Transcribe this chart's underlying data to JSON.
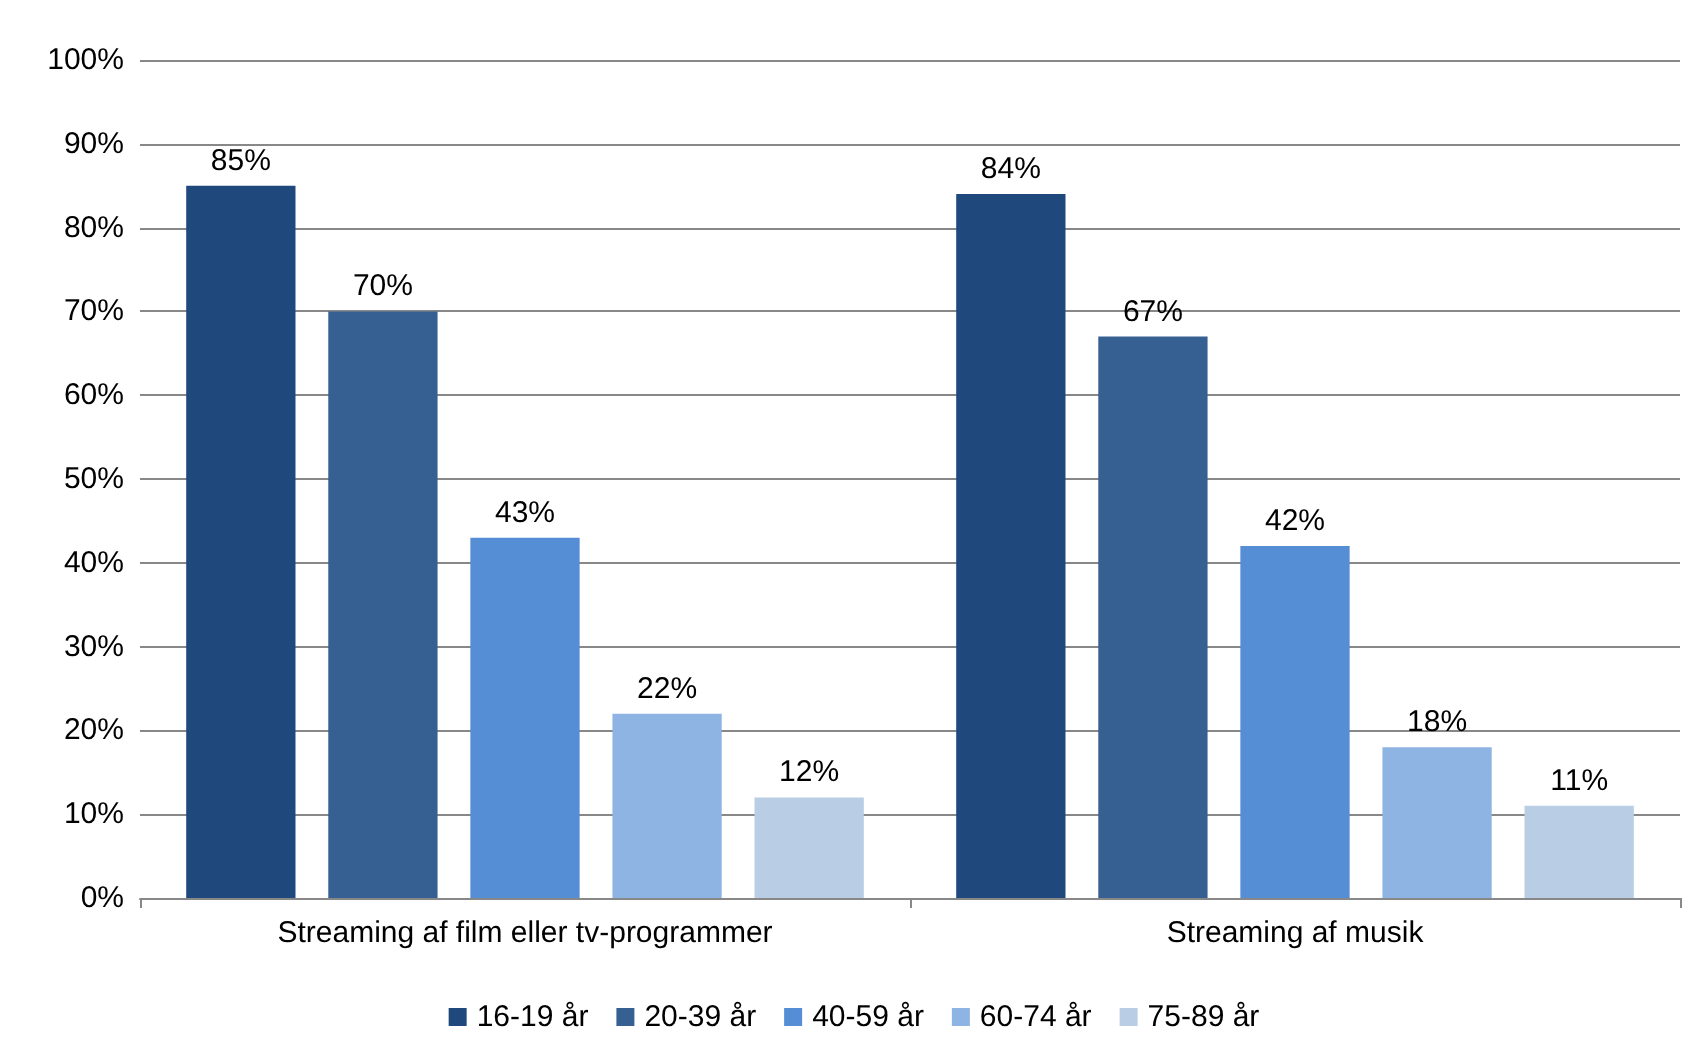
{
  "chart_data": {
    "type": "bar",
    "categories": [
      "Streaming af film eller tv-programmer",
      "Streaming af musik"
    ],
    "series": [
      {
        "name": "16-19 år",
        "color": "#1f497d",
        "values": [
          85,
          84
        ],
        "value_labels": [
          "85%",
          "84%"
        ]
      },
      {
        "name": "20-39 år",
        "color": "#376092",
        "values": [
          70,
          67
        ],
        "value_labels": [
          "70%",
          "67%"
        ]
      },
      {
        "name": "40-59 år",
        "color": "#558ed5",
        "values": [
          43,
          42
        ],
        "value_labels": [
          "43%",
          "42%"
        ]
      },
      {
        "name": "60-74 år",
        "color": "#8eb4e3",
        "values": [
          22,
          18
        ],
        "value_labels": [
          "22%",
          "18%"
        ]
      },
      {
        "name": "75-89 år",
        "color": "#b9cde5",
        "values": [
          12,
          11
        ],
        "value_labels": [
          "12%",
          "11%"
        ]
      }
    ],
    "ylim": [
      0,
      100
    ],
    "yticks": [
      {
        "value": 0,
        "label": "0%"
      },
      {
        "value": 10,
        "label": "10%"
      },
      {
        "value": 20,
        "label": "20%"
      },
      {
        "value": 30,
        "label": "30%"
      },
      {
        "value": 40,
        "label": "40%"
      },
      {
        "value": 50,
        "label": "50%"
      },
      {
        "value": 60,
        "label": "60%"
      },
      {
        "value": 70,
        "label": "70%"
      },
      {
        "value": 80,
        "label": "80%"
      },
      {
        "value": 90,
        "label": "90%"
      },
      {
        "value": 100,
        "label": "100%"
      }
    ],
    "grid": "y",
    "legend": "bottom"
  }
}
